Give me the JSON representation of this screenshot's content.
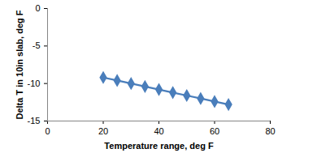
{
  "chart_data": {
    "type": "line",
    "xlabel": "Temperature range, deg F",
    "ylabel": "Delta T in 10in slab, deg F",
    "x": [
      20,
      25,
      30,
      35,
      40,
      45,
      50,
      55,
      60,
      65
    ],
    "values": [
      -9.2,
      -9.6,
      -10.0,
      -10.4,
      -10.8,
      -11.2,
      -11.6,
      -12.0,
      -12.4,
      -12.8
    ],
    "color": "#4a7ebb",
    "marker": "diamond",
    "xlim": [
      0,
      80
    ],
    "xticks": [
      0,
      20,
      40,
      60,
      80
    ],
    "ylim": [
      -15,
      0
    ],
    "yticks": [
      -15,
      -10,
      -5,
      0
    ],
    "grid": false
  }
}
